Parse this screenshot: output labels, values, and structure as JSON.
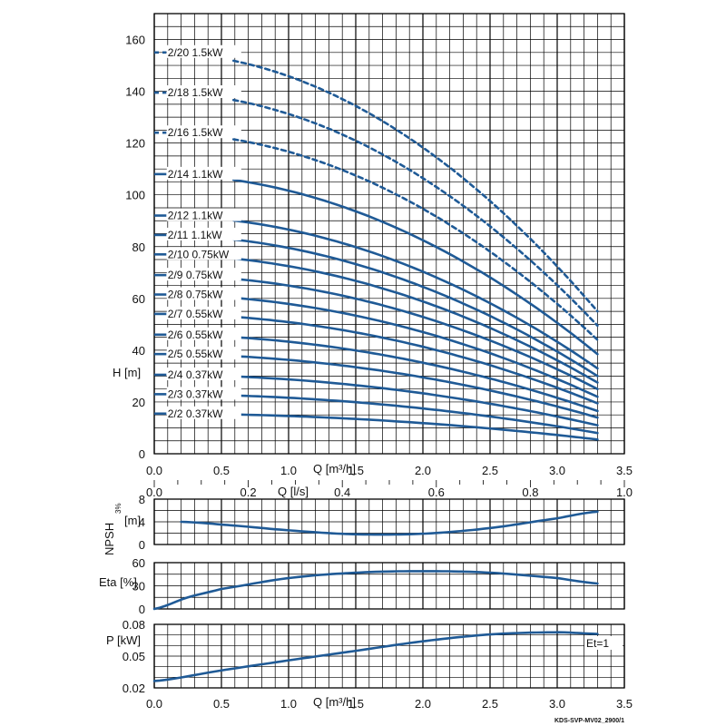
{
  "chart_data": {
    "footer_code": "KDS-SVP-MV02_2900/1",
    "flow_axes": {
      "q_m3h": {
        "label": "Q [m³/h]",
        "range": [
          0,
          3.5
        ],
        "ticks": [
          "0.0",
          "0.5",
          "1.0",
          "1.5",
          "2.0",
          "2.5",
          "3.0",
          "3.5"
        ]
      },
      "q_ls": {
        "label": "Q [l/s]",
        "range": [
          0,
          1.0
        ],
        "ticks": [
          "0.0",
          "0.2",
          "0.4",
          "0.6",
          "0.8",
          "1.0"
        ]
      }
    },
    "head_chart": {
      "type": "line",
      "ylabel": "H [m]",
      "ylim": [
        0,
        170
      ],
      "yticks": [
        "0",
        "20",
        "40",
        "60",
        "80",
        "100",
        "120",
        "140",
        "160"
      ],
      "series": [
        {
          "name": "2/2 0.37kW",
          "h0": 15.5,
          "hend": 5.5,
          "style": "solid"
        },
        {
          "name": "2/3 0.37kW",
          "h0": 23,
          "hend": 8,
          "style": "solid"
        },
        {
          "name": "2/4 0.37kW",
          "h0": 30.5,
          "hend": 11,
          "style": "solid"
        },
        {
          "name": "2/5 0.55kW",
          "h0": 38.5,
          "hend": 14,
          "style": "solid"
        },
        {
          "name": "2/6 0.55kW",
          "h0": 46,
          "hend": 16.5,
          "style": "solid"
        },
        {
          "name": "2/7 0.55kW",
          "h0": 54,
          "hend": 19.5,
          "style": "solid"
        },
        {
          "name": "2/8 0.75kW",
          "h0": 61.5,
          "hend": 22,
          "style": "solid"
        },
        {
          "name": "2/9 0.75kW",
          "h0": 69,
          "hend": 25,
          "style": "solid"
        },
        {
          "name": "2/10 0.75kW",
          "h0": 77,
          "hend": 27.5,
          "style": "solid"
        },
        {
          "name": "2/11 1.1kW",
          "h0": 84.5,
          "hend": 30,
          "style": "solid"
        },
        {
          "name": "2/12 1.1kW",
          "h0": 92,
          "hend": 33,
          "style": "solid"
        },
        {
          "name": "2/14 1.1kW",
          "h0": 108,
          "hend": 38.5,
          "style": "solid"
        },
        {
          "name": "2/16 1.5kW",
          "h0": 124,
          "hend": 44,
          "style": "dashed"
        },
        {
          "name": "2/18 1.5kW",
          "h0": 139.5,
          "hend": 49.5,
          "style": "dashed"
        },
        {
          "name": "2/20 1.5kW",
          "h0": 155,
          "hend": 55,
          "style": "dashed"
        }
      ],
      "q_max": 3.3
    },
    "npsh_chart": {
      "type": "line",
      "ylabel": "NPSH",
      "ylabel_sub": "3%",
      "yunit": "[m]",
      "ylim": [
        0,
        8
      ],
      "yticks": [
        "0",
        "4",
        "8"
      ],
      "x": [
        0.2,
        0.5,
        1.0,
        1.5,
        2.0,
        2.5,
        3.0,
        3.3
      ],
      "y": [
        4.0,
        3.5,
        2.5,
        1.8,
        1.9,
        2.9,
        4.6,
        5.8
      ]
    },
    "eta_chart": {
      "type": "line",
      "ylabel": "Eta [%]",
      "ylim": [
        0,
        60
      ],
      "yticks": [
        "0",
        "30",
        "60"
      ],
      "x": [
        0.0,
        0.25,
        0.5,
        1.0,
        1.5,
        2.0,
        2.5,
        3.0,
        3.3
      ],
      "y": [
        0,
        15,
        26,
        40,
        47,
        49,
        47,
        40,
        33
      ]
    },
    "power_chart": {
      "type": "line",
      "ylabel": "P [kW]",
      "ylim": [
        0.02,
        0.08
      ],
      "yticks": [
        "0.02",
        "0.05",
        "0.08"
      ],
      "x": [
        0.0,
        0.5,
        1.0,
        1.5,
        2.0,
        2.5,
        3.0,
        3.3
      ],
      "y": [
        0.0265,
        0.0365,
        0.046,
        0.055,
        0.064,
        0.0705,
        0.0725,
        0.071
      ],
      "annotation": "Et=1"
    }
  }
}
